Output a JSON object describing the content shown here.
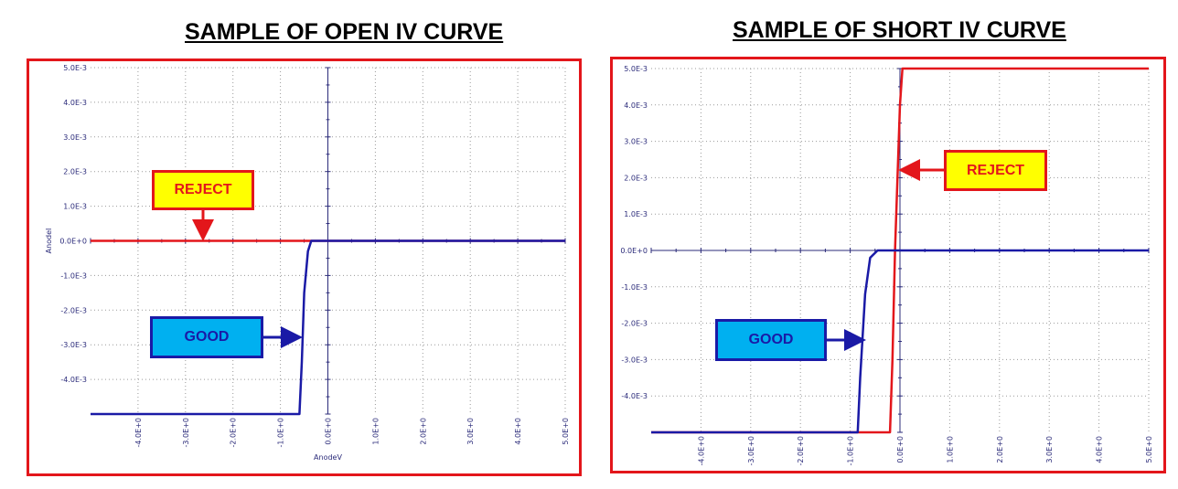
{
  "panels": [
    {
      "title": "SAMPLE OF OPEN IV CURVE",
      "reject_label": "REJECT",
      "good_label": "GOOD"
    },
    {
      "title": "SAMPLE OF SHORT IV CURVE",
      "reject_label": "REJECT",
      "good_label": "GOOD"
    }
  ],
  "colors": {
    "frame": "#e3161b",
    "reject_curve": "#e3161b",
    "good_curve": "#1a1aa6",
    "axis_text": "#2b2b7a",
    "grid": "#9a9a9a"
  },
  "chart_data": [
    {
      "type": "line",
      "title": "SAMPLE OF OPEN IV CURVE",
      "xlabel": "AnodeV",
      "ylabel": "AnodeI",
      "xlim": [
        -5.0,
        5.0
      ],
      "ylim": [
        -0.005,
        0.005
      ],
      "grid": true,
      "x_tick_labels": [
        "-4.0E+0",
        "-3.0E+0",
        "-2.0E+0",
        "-1.0E+0",
        "0.0E+0",
        "1.0E+0",
        "2.0E+0",
        "3.0E+0",
        "4.0E+0",
        "5.0E+0"
      ],
      "y_tick_labels": [
        "5.0E-3",
        "4.0E-3",
        "3.0E-3",
        "2.0E-3",
        "1.0E-3",
        "0.0E+0",
        "-1.0E-3",
        "-2.0E-3",
        "-3.0E-3",
        "-4.0E-3"
      ],
      "series": [
        {
          "annotation": "REJECT",
          "color": "#e3161b",
          "points": [
            [
              -5.0,
              0.0
            ],
            [
              5.0,
              0.0
            ]
          ]
        },
        {
          "annotation": "GOOD",
          "color": "#1a1aa6",
          "points": [
            [
              -5.0,
              -0.005
            ],
            [
              -0.6,
              -0.005
            ],
            [
              -0.55,
              -0.0035
            ],
            [
              -0.5,
              -0.0015
            ],
            [
              -0.42,
              -0.0003
            ],
            [
              -0.35,
              0.0
            ],
            [
              5.0,
              0.0
            ]
          ]
        }
      ]
    },
    {
      "type": "line",
      "title": "SAMPLE OF SHORT IV CURVE",
      "xlabel": "",
      "ylabel": "",
      "xlim": [
        -5.0,
        5.0
      ],
      "ylim": [
        -0.005,
        0.005
      ],
      "grid": true,
      "x_tick_labels": [
        "-4.0E+0",
        "-3.0E+0",
        "-2.0E+0",
        "-1.0E+0",
        "0.0E+0",
        "1.0E+0",
        "2.0E+0",
        "3.0E+0",
        "4.0E+0",
        "5.0E+0"
      ],
      "y_tick_labels": [
        "5.0E-3",
        "4.0E-3",
        "3.0E-3",
        "2.0E-3",
        "1.0E-3",
        "0.0E+0",
        "-1.0E-3",
        "-2.0E-3",
        "-3.0E-3",
        "-4.0E-3"
      ],
      "series": [
        {
          "annotation": "REJECT",
          "color": "#e3161b",
          "points": [
            [
              -5.0,
              -0.005
            ],
            [
              -0.2,
              -0.005
            ],
            [
              -0.15,
              -0.003
            ],
            [
              -0.1,
              0.0
            ],
            [
              0.0,
              0.004
            ],
            [
              0.05,
              0.005
            ],
            [
              5.0,
              0.005
            ]
          ]
        },
        {
          "annotation": "GOOD",
          "color": "#1a1aa6",
          "points": [
            [
              -5.0,
              -0.005
            ],
            [
              -0.85,
              -0.005
            ],
            [
              -0.8,
              -0.0035
            ],
            [
              -0.7,
              -0.0012
            ],
            [
              -0.6,
              -0.0002
            ],
            [
              -0.45,
              0.0
            ],
            [
              5.0,
              0.0
            ]
          ]
        }
      ]
    }
  ]
}
